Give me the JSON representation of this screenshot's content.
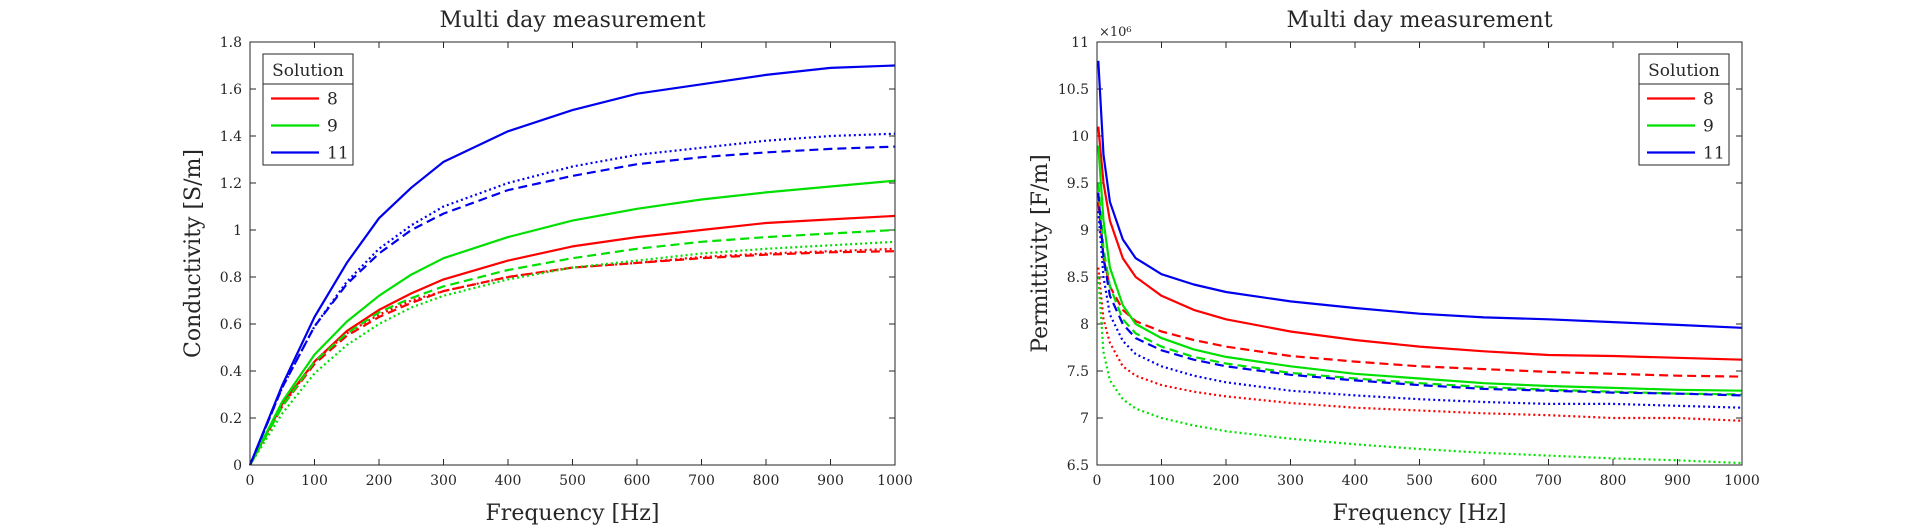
{
  "chart_data": [
    {
      "type": "line",
      "title": "Multi day measurement",
      "xlabel": "Frequency [Hz]",
      "ylabel": "Conductivity [S/m]",
      "xlim": [
        0,
        1000
      ],
      "ylim": [
        0,
        1.8
      ],
      "xticks": [
        0,
        100,
        200,
        300,
        400,
        500,
        600,
        700,
        800,
        900,
        1000
      ],
      "yticks": [
        0,
        0.2,
        0.4,
        0.6,
        0.8,
        1,
        1.2,
        1.4,
        1.6,
        1.8
      ],
      "grid": false,
      "legend": {
        "title": "Solution",
        "position": "top-left",
        "entries": [
          "8",
          "9",
          "11"
        ]
      },
      "series": [
        {
          "name": "8",
          "color": "#ff0000",
          "style": "solid",
          "x": [
            0,
            50,
            100,
            150,
            200,
            250,
            300,
            400,
            500,
            600,
            700,
            800,
            900,
            1000
          ],
          "y": [
            0,
            0.26,
            0.44,
            0.57,
            0.66,
            0.73,
            0.79,
            0.87,
            0.93,
            0.97,
            1.0,
            1.03,
            1.045,
            1.06
          ]
        },
        {
          "name": "",
          "color": "#ff0000",
          "style": "dashed",
          "x": [
            0,
            50,
            100,
            150,
            200,
            250,
            300,
            400,
            500,
            600,
            700,
            800,
            900,
            1000
          ],
          "y": [
            0,
            0.25,
            0.43,
            0.55,
            0.63,
            0.69,
            0.74,
            0.8,
            0.84,
            0.86,
            0.88,
            0.895,
            0.905,
            0.91
          ]
        },
        {
          "name": "",
          "color": "#ff0000",
          "style": "dotted",
          "x": [
            0,
            50,
            100,
            150,
            200,
            250,
            300,
            400,
            500,
            600,
            700,
            800,
            900,
            1000
          ],
          "y": [
            0,
            0.25,
            0.44,
            0.56,
            0.64,
            0.7,
            0.74,
            0.8,
            0.84,
            0.86,
            0.885,
            0.9,
            0.91,
            0.92
          ]
        },
        {
          "name": "9",
          "color": "#00e000",
          "style": "solid",
          "x": [
            0,
            50,
            100,
            150,
            200,
            250,
            300,
            400,
            500,
            600,
            700,
            800,
            900,
            1000
          ],
          "y": [
            0,
            0.27,
            0.47,
            0.61,
            0.72,
            0.81,
            0.88,
            0.97,
            1.04,
            1.09,
            1.13,
            1.16,
            1.185,
            1.21
          ]
        },
        {
          "name": "",
          "color": "#00e000",
          "style": "dashed",
          "x": [
            0,
            50,
            100,
            150,
            200,
            250,
            300,
            400,
            500,
            600,
            700,
            800,
            900,
            1000
          ],
          "y": [
            0,
            0.25,
            0.44,
            0.56,
            0.65,
            0.71,
            0.76,
            0.83,
            0.88,
            0.92,
            0.95,
            0.97,
            0.985,
            1.0
          ]
        },
        {
          "name": "",
          "color": "#00e000",
          "style": "dotted",
          "x": [
            0,
            50,
            100,
            150,
            200,
            250,
            300,
            400,
            500,
            600,
            700,
            800,
            900,
            1000
          ],
          "y": [
            0,
            0.22,
            0.39,
            0.51,
            0.6,
            0.67,
            0.72,
            0.79,
            0.84,
            0.87,
            0.9,
            0.92,
            0.935,
            0.95
          ]
        },
        {
          "name": "11",
          "color": "#0000ee",
          "style": "solid",
          "x": [
            0,
            50,
            100,
            150,
            200,
            250,
            300,
            400,
            500,
            600,
            700,
            800,
            900,
            1000
          ],
          "y": [
            0,
            0.34,
            0.63,
            0.86,
            1.05,
            1.18,
            1.29,
            1.42,
            1.51,
            1.58,
            1.62,
            1.66,
            1.69,
            1.7
          ]
        },
        {
          "name": "",
          "color": "#0000ee",
          "style": "dashed",
          "x": [
            0,
            50,
            100,
            150,
            200,
            250,
            300,
            400,
            500,
            600,
            700,
            800,
            900,
            1000
          ],
          "y": [
            0,
            0.33,
            0.59,
            0.77,
            0.9,
            1.0,
            1.07,
            1.17,
            1.23,
            1.28,
            1.31,
            1.33,
            1.345,
            1.355
          ]
        },
        {
          "name": "",
          "color": "#0000ee",
          "style": "dotted",
          "x": [
            0,
            50,
            100,
            150,
            200,
            250,
            300,
            400,
            500,
            600,
            700,
            800,
            900,
            1000
          ],
          "y": [
            0,
            0.33,
            0.59,
            0.78,
            0.92,
            1.02,
            1.1,
            1.2,
            1.27,
            1.32,
            1.35,
            1.38,
            1.4,
            1.41
          ]
        }
      ]
    },
    {
      "type": "line",
      "title": "Multi day measurement",
      "xlabel": "Frequency [Hz]",
      "ylabel": "Permittivity [F/m]",
      "exponent": "×10⁶",
      "xlim": [
        0,
        1000
      ],
      "ylim": [
        6.5,
        11
      ],
      "xticks": [
        0,
        100,
        200,
        300,
        400,
        500,
        600,
        700,
        800,
        900,
        1000
      ],
      "yticks": [
        6.5,
        7,
        7.5,
        8,
        8.5,
        9,
        9.5,
        10,
        10.5,
        11
      ],
      "grid": false,
      "legend": {
        "title": "Solution",
        "position": "top-right",
        "entries": [
          "8",
          "9",
          "11"
        ]
      },
      "series": [
        {
          "name": "8",
          "color": "#ff0000",
          "style": "solid",
          "x": [
            2,
            10,
            20,
            40,
            60,
            100,
            150,
            200,
            300,
            400,
            500,
            600,
            700,
            800,
            900,
            1000
          ],
          "y": [
            10.1,
            9.5,
            9.1,
            8.7,
            8.5,
            8.3,
            8.15,
            8.05,
            7.92,
            7.83,
            7.76,
            7.71,
            7.67,
            7.66,
            7.64,
            7.62
          ]
        },
        {
          "name": "",
          "color": "#ff0000",
          "style": "dashed",
          "x": [
            2,
            10,
            20,
            40,
            60,
            100,
            150,
            200,
            300,
            400,
            500,
            600,
            700,
            800,
            900,
            1000
          ],
          "y": [
            9.3,
            8.7,
            8.4,
            8.15,
            8.03,
            7.92,
            7.83,
            7.76,
            7.66,
            7.6,
            7.55,
            7.52,
            7.49,
            7.47,
            7.45,
            7.44
          ]
        },
        {
          "name": "",
          "color": "#ff0000",
          "style": "dotted",
          "x": [
            2,
            10,
            20,
            40,
            60,
            100,
            150,
            200,
            300,
            400,
            500,
            600,
            700,
            800,
            900,
            1000
          ],
          "y": [
            8.6,
            8.05,
            7.8,
            7.55,
            7.45,
            7.35,
            7.28,
            7.23,
            7.16,
            7.11,
            7.08,
            7.05,
            7.03,
            7.0,
            7.0,
            6.97
          ]
        },
        {
          "name": "9",
          "color": "#00e000",
          "style": "solid",
          "x": [
            2,
            10,
            20,
            40,
            60,
            100,
            150,
            200,
            300,
            400,
            500,
            600,
            700,
            800,
            900,
            1000
          ],
          "y": [
            9.9,
            9.1,
            8.6,
            8.2,
            8.0,
            7.85,
            7.73,
            7.65,
            7.55,
            7.47,
            7.42,
            7.37,
            7.34,
            7.32,
            7.3,
            7.29
          ]
        },
        {
          "name": "",
          "color": "#00e000",
          "style": "dashed",
          "x": [
            2,
            10,
            20,
            40,
            60,
            100,
            150,
            200,
            300,
            400,
            500,
            600,
            700,
            800,
            900,
            1000
          ],
          "y": [
            9.5,
            8.8,
            8.4,
            8.05,
            7.9,
            7.76,
            7.65,
            7.58,
            7.48,
            7.42,
            7.37,
            7.33,
            7.3,
            7.28,
            7.26,
            7.25
          ]
        },
        {
          "name": "",
          "color": "#00e000",
          "style": "dotted",
          "x": [
            2,
            10,
            20,
            40,
            60,
            100,
            150,
            200,
            300,
            400,
            500,
            600,
            700,
            800,
            900,
            1000
          ],
          "y": [
            8.5,
            7.7,
            7.4,
            7.2,
            7.1,
            7.0,
            6.92,
            6.86,
            6.78,
            6.72,
            6.67,
            6.63,
            6.6,
            6.57,
            6.55,
            6.52
          ]
        },
        {
          "name": "11",
          "color": "#0000ee",
          "style": "solid",
          "x": [
            2,
            10,
            20,
            40,
            60,
            100,
            150,
            200,
            300,
            400,
            500,
            600,
            700,
            800,
            900,
            1000
          ],
          "y": [
            10.8,
            9.8,
            9.3,
            8.9,
            8.7,
            8.53,
            8.42,
            8.34,
            8.24,
            8.17,
            8.11,
            8.07,
            8.05,
            8.02,
            7.99,
            7.96
          ]
        },
        {
          "name": "",
          "color": "#0000ee",
          "style": "dashed",
          "x": [
            2,
            10,
            20,
            40,
            60,
            100,
            150,
            200,
            300,
            400,
            500,
            600,
            700,
            800,
            900,
            1000
          ],
          "y": [
            9.4,
            8.7,
            8.3,
            8.0,
            7.85,
            7.72,
            7.62,
            7.55,
            7.46,
            7.4,
            7.35,
            7.31,
            7.29,
            7.27,
            7.26,
            7.24
          ]
        },
        {
          "name": "",
          "color": "#0000ee",
          "style": "dotted",
          "x": [
            2,
            10,
            20,
            40,
            60,
            100,
            150,
            200,
            300,
            400,
            500,
            600,
            700,
            800,
            900,
            1000
          ],
          "y": [
            9.2,
            8.5,
            8.1,
            7.82,
            7.68,
            7.55,
            7.45,
            7.38,
            7.29,
            7.24,
            7.2,
            7.17,
            7.15,
            7.15,
            7.13,
            7.11
          ]
        }
      ]
    }
  ]
}
